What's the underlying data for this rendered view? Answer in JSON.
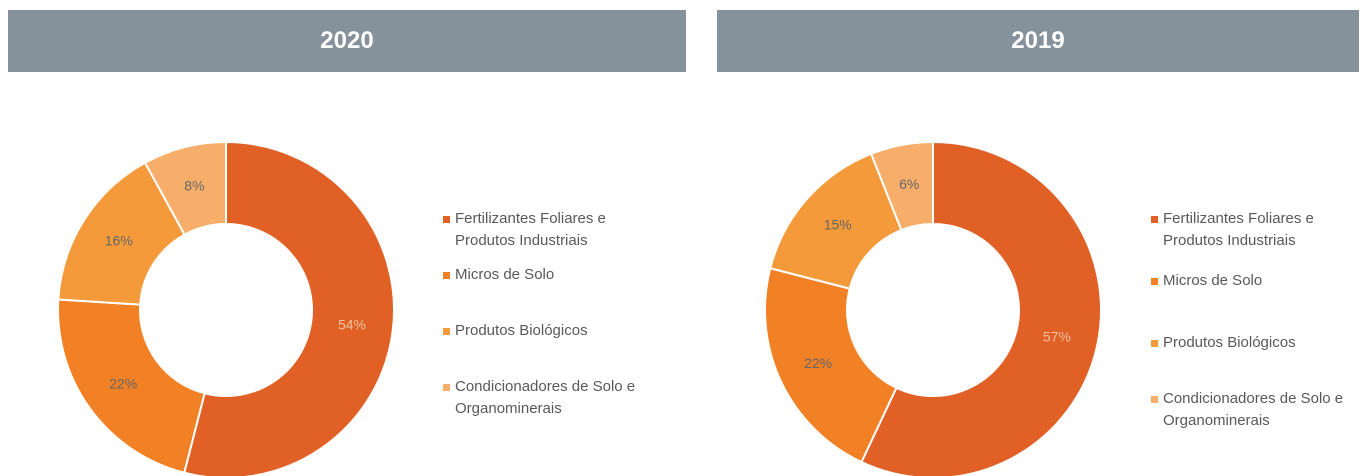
{
  "chart_data": [
    {
      "type": "pie",
      "title": "2020",
      "categories": [
        "Fertilizantes Foliares e Produtos Industriais",
        "Micros de Solo",
        "Produtos Biológicos",
        "Condicionadores de Solo e Organominerais"
      ],
      "values": [
        54,
        22,
        16,
        8
      ],
      "value_labels": [
        "54%",
        "22%",
        "16%",
        "8%"
      ],
      "colors": [
        "#e06026",
        "#f28024",
        "#f59a3a",
        "#f7ae6a"
      ],
      "donut": true,
      "legend": "right"
    },
    {
      "type": "pie",
      "title": "2019",
      "categories": [
        "Fertilizantes Foliares e Produtos Industriais",
        "Micros de Solo",
        "Produtos Biológicos",
        "Condicionadores de Solo e Organominerais"
      ],
      "values": [
        57,
        22,
        15,
        6
      ],
      "value_labels": [
        "57%",
        "22%",
        "15%",
        "6%"
      ],
      "colors": [
        "#e06026",
        "#f28024",
        "#f59a3a",
        "#f7ae6a"
      ],
      "donut": true,
      "legend": "right"
    }
  ]
}
